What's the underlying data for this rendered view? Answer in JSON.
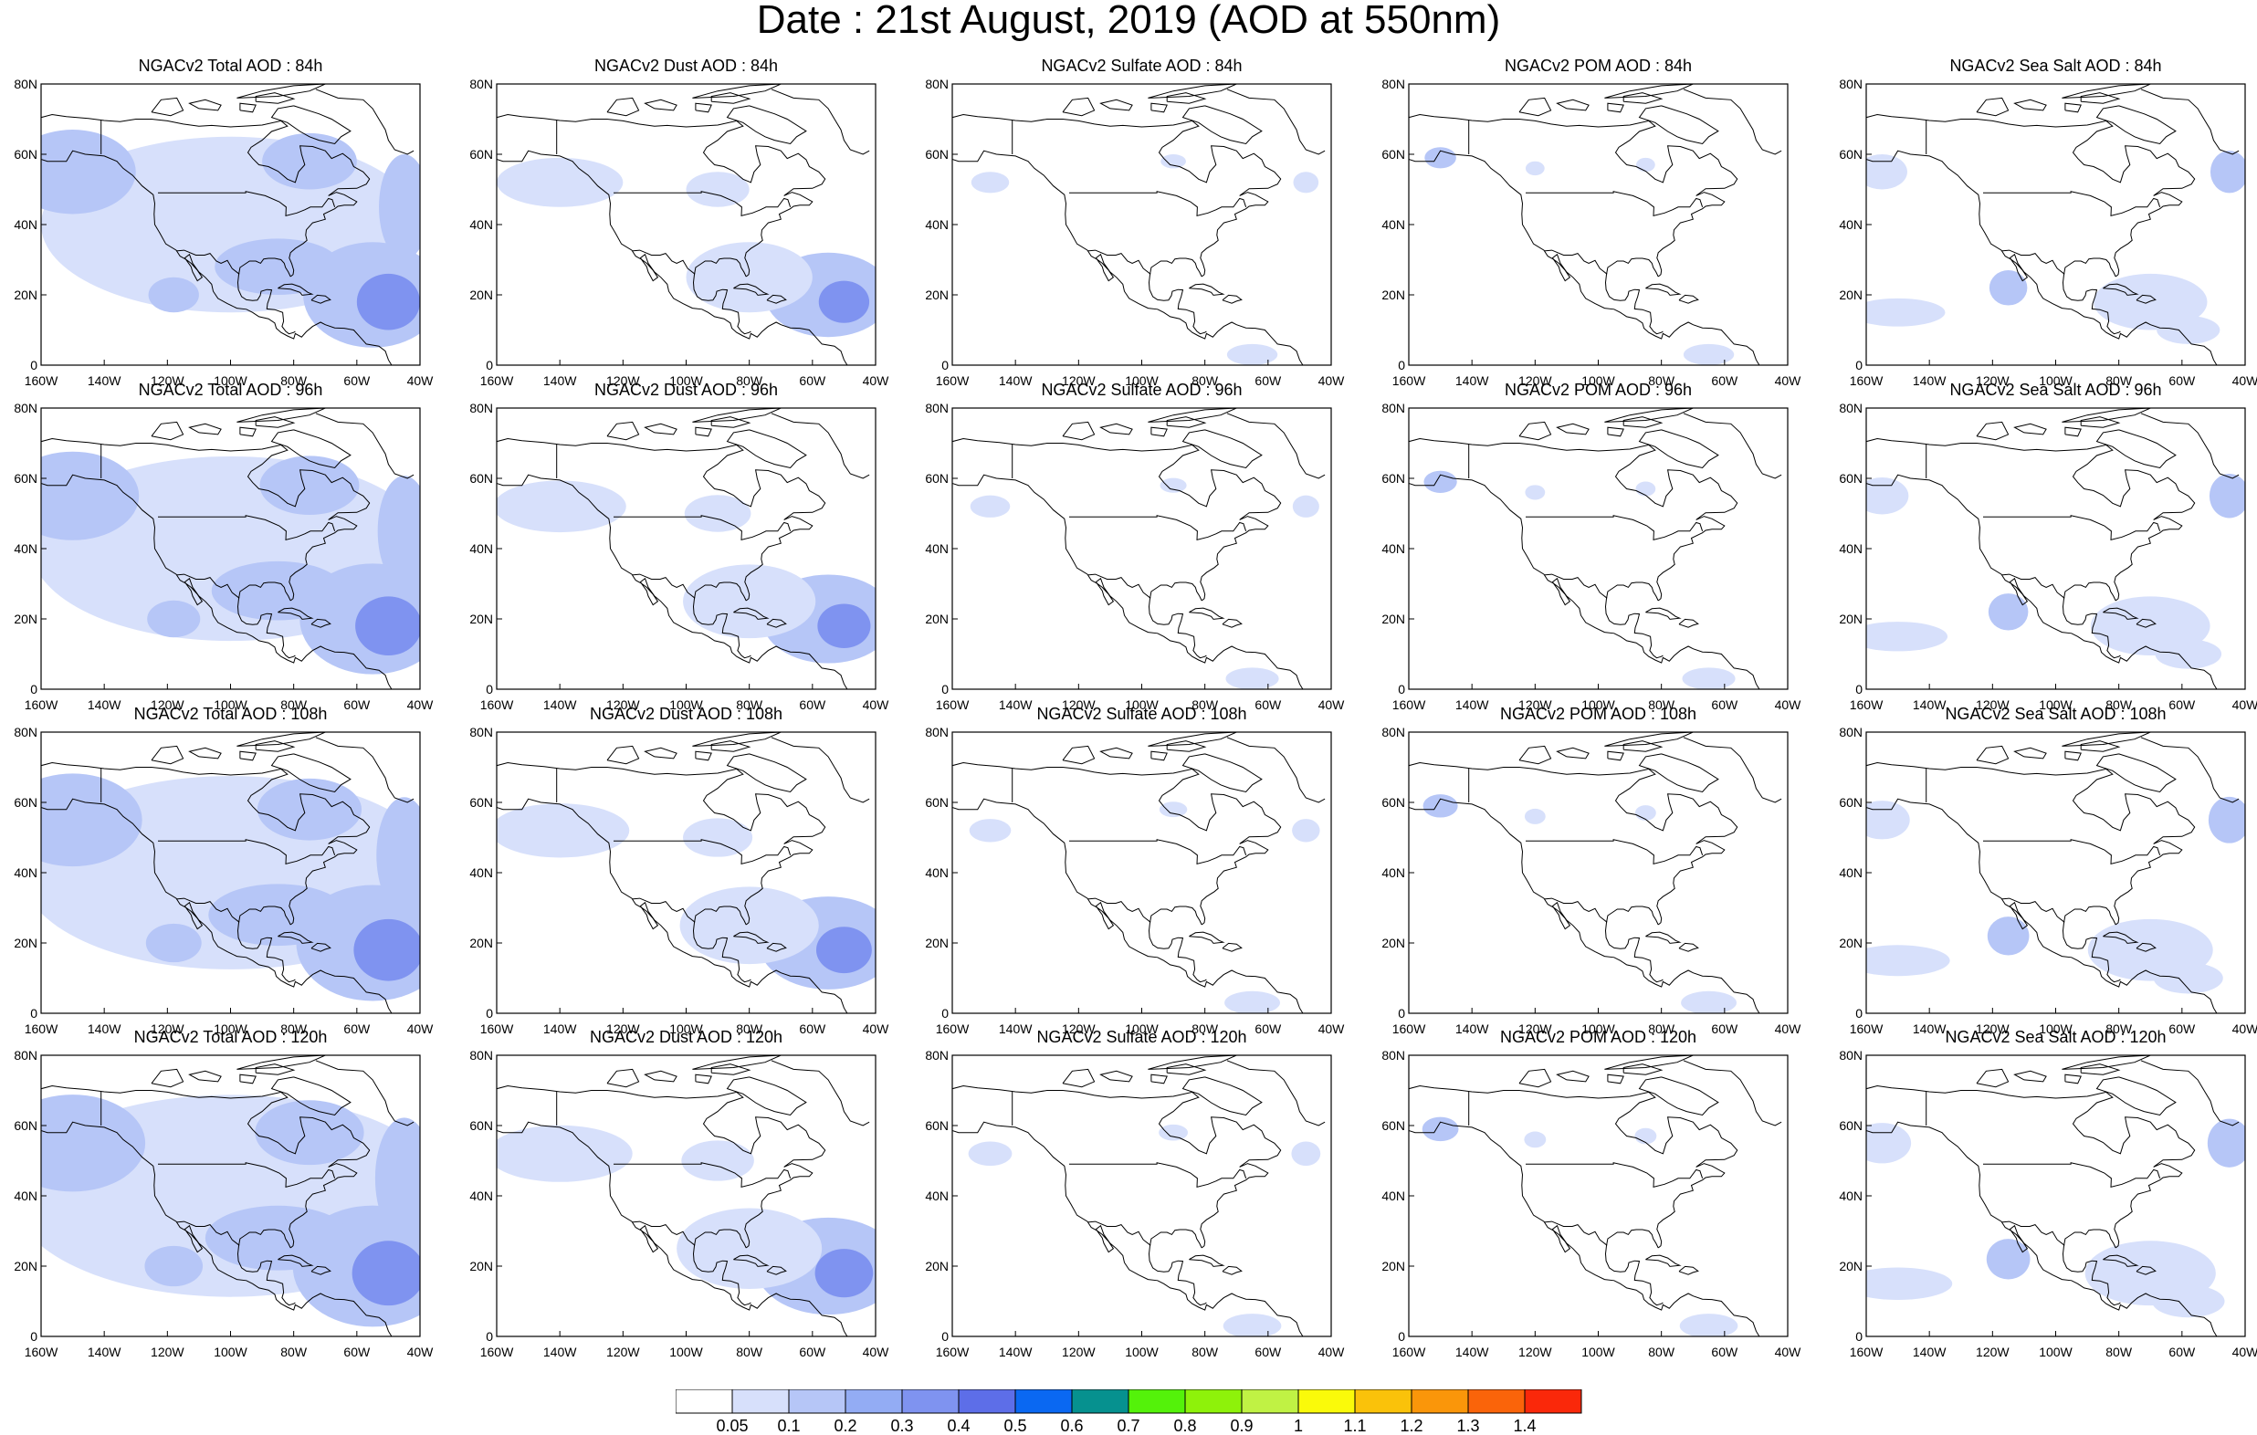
{
  "title": "Date : 21st August, 2019 (AOD at 550nm)",
  "panels": [
    [
      "NGACv2 Total AOD : 84h",
      "NGACv2 Dust AOD : 84h",
      "NGACv2 Sulfate AOD : 84h",
      "NGACv2 POM AOD : 84h",
      "NGACv2 Sea Salt AOD : 84h"
    ],
    [
      "NGACv2 Total AOD : 96h",
      "NGACv2 Dust AOD : 96h",
      "NGACv2 Sulfate AOD : 96h",
      "NGACv2 POM AOD : 96h",
      "NGACv2 Sea Salt AOD : 96h"
    ],
    [
      "NGACv2 Total AOD : 108h",
      "NGACv2 Dust AOD : 108h",
      "NGACv2 Sulfate AOD : 108h",
      "NGACv2 POM AOD : 108h",
      "NGACv2 Sea Salt AOD : 108h"
    ],
    [
      "NGACv2 Total AOD : 120h",
      "NGACv2 Dust AOD : 120h",
      "NGACv2 Sulfate AOD : 120h",
      "NGACv2 POM AOD : 120h",
      "NGACv2 Sea Salt  AOD : 120h"
    ]
  ],
  "map": {
    "lat_ticks": [
      "0",
      "20N",
      "40N",
      "60N",
      "80N"
    ],
    "lon_ticks": [
      "160W",
      "140W",
      "120W",
      "100W",
      "80W",
      "60W",
      "40W"
    ],
    "lat_range": [
      0,
      80
    ],
    "lon_range": [
      -160,
      -40
    ]
  },
  "colorbar": {
    "levels": [
      "0.05",
      "0.1",
      "0.2",
      "0.3",
      "0.4",
      "0.5",
      "0.6",
      "0.7",
      "0.8",
      "0.9",
      "1",
      "1.1",
      "1.2",
      "1.3",
      "1.4"
    ],
    "colors": [
      "#ffffff",
      "#d7e0fb",
      "#b6c6f7",
      "#93acf4",
      "#7f93f0",
      "#5d6ee8",
      "#0a68f2",
      "#06918f",
      "#54f20a",
      "#8ef20a",
      "#c0f244",
      "#fafa0a",
      "#fac20a",
      "#fa960a",
      "#fa640a",
      "#fa280a"
    ]
  }
}
